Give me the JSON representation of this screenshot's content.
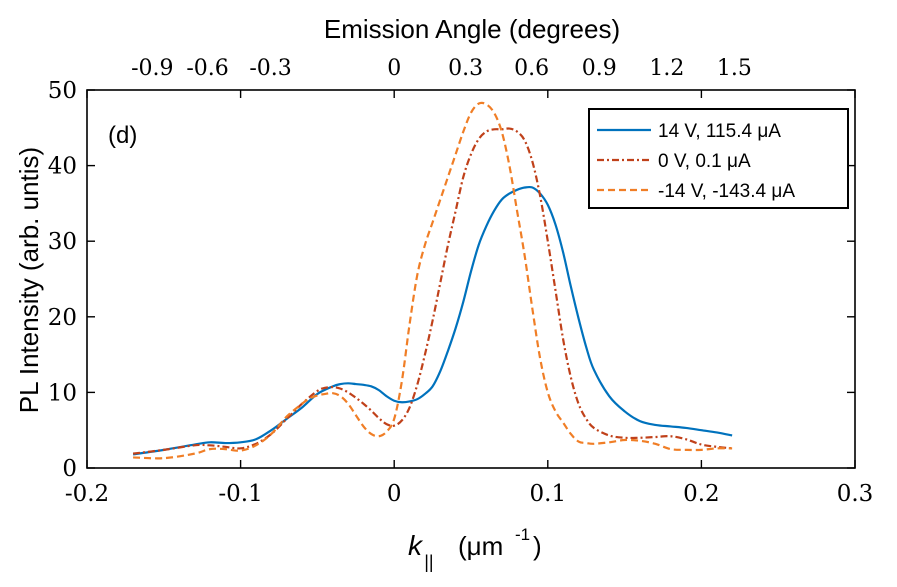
{
  "chart_data": {
    "type": "line",
    "panel_label": "(d)",
    "top_axis": {
      "label": "Emission Angle (degrees)",
      "ticks": [
        -0.9,
        -0.6,
        -0.3,
        0,
        0.3,
        0.6,
        0.9,
        1.2,
        1.5
      ],
      "tick_labels": [
        "-0.9",
        "-0.6",
        "-0.3",
        "0",
        "0.3",
        "0.6",
        "0.9",
        "1.2",
        "1.5"
      ],
      "k_at_ticks": [
        -0.1575,
        -0.1215,
        -0.0805,
        0.0,
        0.0465,
        0.0895,
        0.1335,
        0.1775,
        0.2215
      ]
    },
    "x_axis": {
      "label_main": "k",
      "label_sub": "||",
      "label_unit_prefix": "(μm",
      "label_unit_sup": "-1",
      "label_unit_suffix": ")",
      "range": [
        -0.2,
        0.3
      ],
      "ticks": [
        -0.2,
        -0.1,
        0,
        0.1,
        0.2,
        0.3
      ],
      "tick_labels": [
        "-0.2",
        "-0.1",
        "0",
        "0.1",
        "0.2",
        "0.3"
      ]
    },
    "y_axis": {
      "label": "PL Intensity (arb. untis)",
      "range": [
        0,
        50
      ],
      "ticks": [
        0,
        10,
        20,
        30,
        40,
        50
      ],
      "tick_labels": [
        "0",
        "10",
        "20",
        "30",
        "40",
        "50"
      ]
    },
    "legend_position": "top-right",
    "series": [
      {
        "name": "14 V, 115.4 μA",
        "color": "#0072BD",
        "dash": "solid",
        "x": [
          -0.17,
          -0.15,
          -0.13,
          -0.12,
          -0.11,
          -0.1,
          -0.09,
          -0.08,
          -0.07,
          -0.06,
          -0.05,
          -0.04,
          -0.035,
          -0.03,
          -0.025,
          -0.02,
          -0.015,
          -0.01,
          -0.005,
          0.0,
          0.005,
          0.01,
          0.015,
          0.02,
          0.025,
          0.03,
          0.035,
          0.04,
          0.045,
          0.05,
          0.055,
          0.06,
          0.065,
          0.07,
          0.075,
          0.08,
          0.085,
          0.09,
          0.095,
          0.1,
          0.105,
          0.11,
          0.115,
          0.12,
          0.125,
          0.13,
          0.14,
          0.15,
          0.16,
          0.17,
          0.18,
          0.19,
          0.2,
          0.21,
          0.22
        ],
        "y": [
          1.8,
          2.4,
          3.1,
          3.4,
          3.3,
          3.4,
          3.8,
          5.0,
          6.5,
          8.0,
          9.8,
          10.8,
          11.1,
          11.2,
          11.1,
          11.0,
          10.8,
          10.3,
          9.5,
          8.9,
          8.7,
          8.8,
          9.1,
          9.8,
          10.8,
          12.8,
          15.5,
          18.5,
          22.0,
          26.0,
          29.5,
          32.0,
          34.0,
          35.5,
          36.3,
          36.8,
          37.1,
          37.1,
          36.3,
          34.8,
          32.2,
          28.5,
          24.0,
          19.8,
          16.0,
          13.0,
          9.5,
          7.5,
          6.2,
          5.7,
          5.5,
          5.3,
          5.0,
          4.7,
          4.3
        ]
      },
      {
        "name": "0 V, 0.1 μA",
        "color": "#C0411A",
        "dash": "dashdot",
        "x": [
          -0.17,
          -0.15,
          -0.13,
          -0.12,
          -0.11,
          -0.1,
          -0.09,
          -0.08,
          -0.07,
          -0.06,
          -0.05,
          -0.045,
          -0.04,
          -0.035,
          -0.03,
          -0.025,
          -0.02,
          -0.015,
          -0.01,
          -0.005,
          0.0,
          0.005,
          0.01,
          0.015,
          0.02,
          0.025,
          0.03,
          0.035,
          0.04,
          0.045,
          0.05,
          0.055,
          0.06,
          0.065,
          0.07,
          0.075,
          0.08,
          0.085,
          0.09,
          0.095,
          0.1,
          0.105,
          0.11,
          0.115,
          0.12,
          0.125,
          0.13,
          0.14,
          0.15,
          0.16,
          0.17,
          0.18,
          0.19,
          0.2,
          0.21,
          0.22
        ],
        "y": [
          1.9,
          2.4,
          3.0,
          3.0,
          2.8,
          2.6,
          3.2,
          4.5,
          6.5,
          8.5,
          10.2,
          10.6,
          10.7,
          10.5,
          10.0,
          9.3,
          8.5,
          7.6,
          6.6,
          5.8,
          5.6,
          6.3,
          8.0,
          11.0,
          15.0,
          19.5,
          24.5,
          29.5,
          34.0,
          38.5,
          41.5,
          43.5,
          44.5,
          44.8,
          44.8,
          44.9,
          44.5,
          43.3,
          40.5,
          36.0,
          30.0,
          23.5,
          17.0,
          12.0,
          8.5,
          6.5,
          5.3,
          4.3,
          4.0,
          4.0,
          4.1,
          4.2,
          3.8,
          3.1,
          2.8,
          2.6
        ]
      },
      {
        "name": "-14 V, -143.4 μA",
        "color": "#F07E26",
        "dash": "dashed",
        "x": [
          -0.17,
          -0.15,
          -0.13,
          -0.12,
          -0.11,
          -0.1,
          -0.09,
          -0.08,
          -0.07,
          -0.06,
          -0.055,
          -0.05,
          -0.045,
          -0.04,
          -0.035,
          -0.03,
          -0.025,
          -0.02,
          -0.015,
          -0.01,
          -0.005,
          0.0,
          0.005,
          0.01,
          0.015,
          0.02,
          0.025,
          0.03,
          0.035,
          0.04,
          0.045,
          0.05,
          0.055,
          0.06,
          0.065,
          0.07,
          0.075,
          0.08,
          0.085,
          0.09,
          0.095,
          0.1,
          0.105,
          0.11,
          0.115,
          0.12,
          0.125,
          0.13,
          0.14,
          0.15,
          0.16,
          0.17,
          0.18,
          0.19,
          0.2,
          0.21,
          0.22
        ],
        "y": [
          1.4,
          1.3,
          1.9,
          2.5,
          2.5,
          2.3,
          3.0,
          4.5,
          6.8,
          8.5,
          9.2,
          9.6,
          9.8,
          9.9,
          9.5,
          8.5,
          7.0,
          5.5,
          4.5,
          4.2,
          4.8,
          6.5,
          11.5,
          19.0,
          25.5,
          29.5,
          32.5,
          35.5,
          38.5,
          41.5,
          44.5,
          47.0,
          48.2,
          48.1,
          47.0,
          44.5,
          40.0,
          34.0,
          28.0,
          21.0,
          14.5,
          10.0,
          7.5,
          6.0,
          4.5,
          3.5,
          3.3,
          3.2,
          3.4,
          3.7,
          3.6,
          3.2,
          2.5,
          2.4,
          2.4,
          2.6,
          2.6
        ]
      }
    ]
  }
}
